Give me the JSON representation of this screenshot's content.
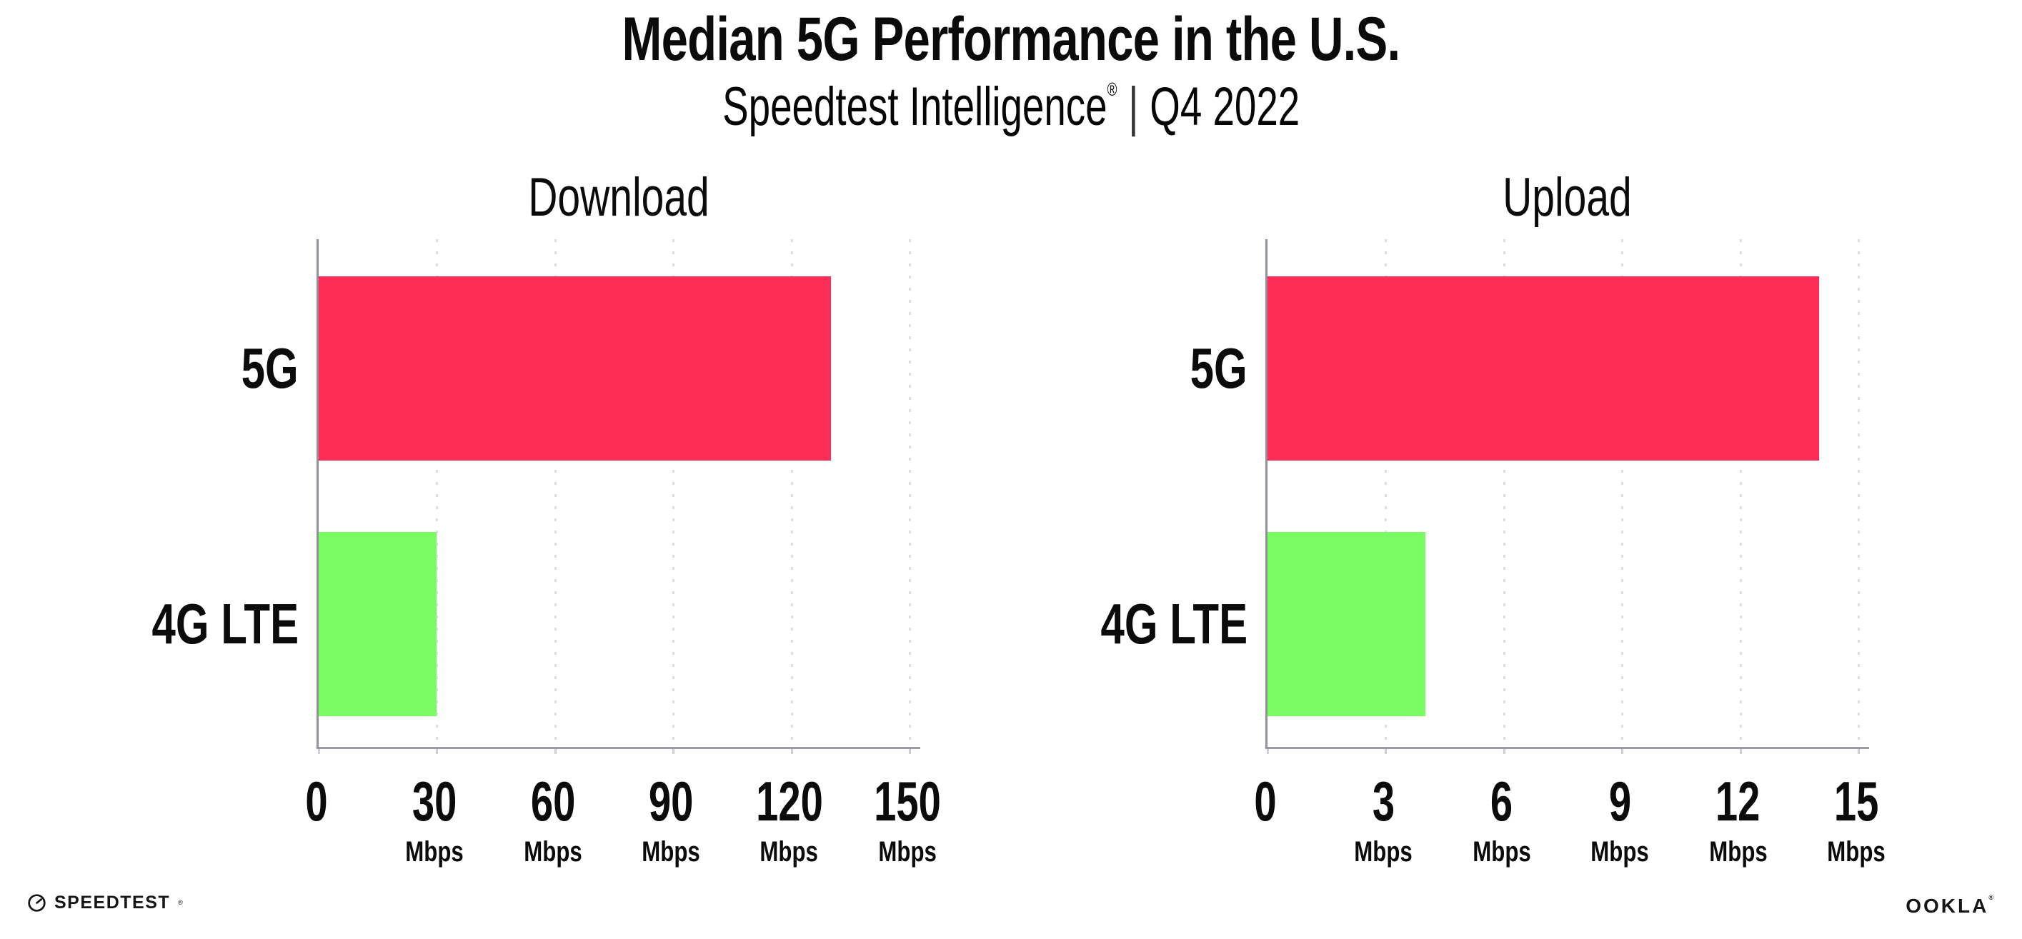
{
  "header": {
    "title": "Median 5G Performance in the U.S.",
    "subtitle_brand": "Speedtest Intelligence",
    "subtitle_reg": "®",
    "subtitle_separator": "|",
    "subtitle_period": "Q4 2022"
  },
  "colors": {
    "bar_5g": "#FC2E57",
    "bar_4g_lte": "#7BFC65",
    "axis": "#90909A",
    "gridline": "#DCDDE8",
    "text": "#0B0B0B"
  },
  "chart_data": [
    {
      "type": "bar",
      "orientation": "horizontal",
      "title": "Download",
      "categories": [
        "5G",
        "4G LTE"
      ],
      "values": [
        130,
        30
      ],
      "unit": "Mbps",
      "xlim": [
        0,
        150
      ],
      "xticks": [
        0,
        30,
        60,
        90,
        120,
        150
      ],
      "grid": "dotted-vertical",
      "legend": "none",
      "bar_colors": [
        "#FC2E57",
        "#7BFC65"
      ]
    },
    {
      "type": "bar",
      "orientation": "horizontal",
      "title": "Upload",
      "categories": [
        "5G",
        "4G LTE"
      ],
      "values": [
        14,
        4
      ],
      "unit": "Mbps",
      "xlim": [
        0,
        15
      ],
      "xticks": [
        0,
        3,
        6,
        9,
        12,
        15
      ],
      "grid": "dotted-vertical",
      "legend": "none",
      "bar_colors": [
        "#FC2E57",
        "#7BFC65"
      ]
    }
  ],
  "footer": {
    "speedtest_label": "SPEEDTEST",
    "speedtest_reg": "®",
    "ookla_label": "OOKLA",
    "ookla_reg": "®"
  }
}
